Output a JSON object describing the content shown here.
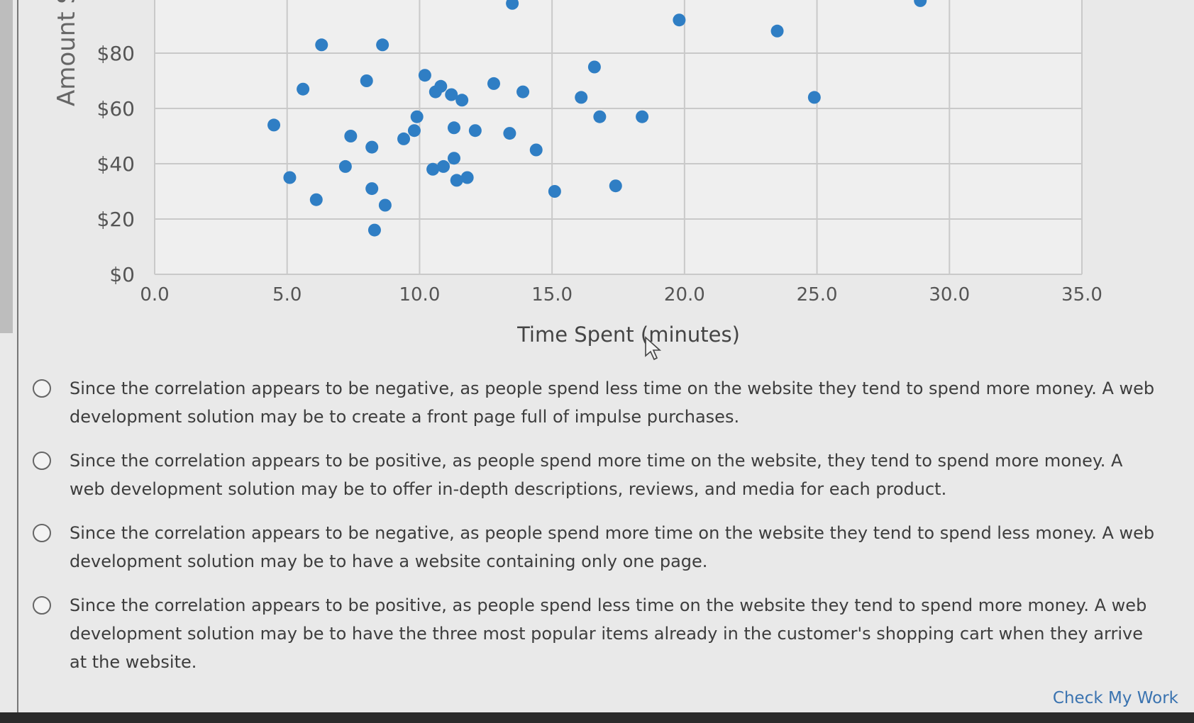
{
  "chart_data": {
    "type": "scatter",
    "ylabel": "Amount Sp",
    "xlabel": "Time Spent (minutes)",
    "x_ticks": [
      "0.0",
      "5.0",
      "10.0",
      "15.0",
      "20.0",
      "25.0",
      "30.0",
      "35.0"
    ],
    "y_ticks": [
      "$0",
      "$20",
      "$40",
      "$60",
      "$80"
    ],
    "xlim": [
      0,
      35
    ],
    "ylim": [
      0,
      94
    ],
    "grid": true,
    "color": "#2f7ec4",
    "points": [
      [
        4.5,
        54
      ],
      [
        5.1,
        35
      ],
      [
        5.6,
        67
      ],
      [
        6.1,
        27
      ],
      [
        6.3,
        83
      ],
      [
        7.2,
        39
      ],
      [
        7.4,
        50
      ],
      [
        8.0,
        70
      ],
      [
        8.2,
        46
      ],
      [
        8.2,
        31
      ],
      [
        8.3,
        16
      ],
      [
        8.6,
        83
      ],
      [
        8.7,
        25
      ],
      [
        9.4,
        49
      ],
      [
        9.8,
        52
      ],
      [
        9.9,
        57
      ],
      [
        10.2,
        72
      ],
      [
        10.5,
        38
      ],
      [
        10.6,
        66
      ],
      [
        10.8,
        68
      ],
      [
        10.9,
        39
      ],
      [
        11.2,
        65
      ],
      [
        11.3,
        53
      ],
      [
        11.3,
        42
      ],
      [
        11.4,
        34
      ],
      [
        11.6,
        63
      ],
      [
        11.8,
        35
      ],
      [
        12.1,
        52
      ],
      [
        12.8,
        69
      ],
      [
        13.4,
        51
      ],
      [
        13.9,
        66
      ],
      [
        14.4,
        45
      ],
      [
        15.1,
        30
      ],
      [
        16.1,
        64
      ],
      [
        16.6,
        75
      ],
      [
        16.8,
        57
      ],
      [
        17.4,
        32
      ],
      [
        18.4,
        57
      ],
      [
        19.8,
        92
      ],
      [
        23.5,
        88
      ],
      [
        24.9,
        64
      ],
      [
        13.5,
        98
      ],
      [
        28.9,
        99
      ]
    ]
  },
  "options": [
    "Since the correlation appears to be negative, as people spend less time on the website they tend to spend more money. A web development solution may be to create a front page full of impulse purchases.",
    "Since the correlation appears to be positive, as people spend more time on the website, they tend to spend more money. A web development solution may be to offer in-depth descriptions, reviews, and media for each product.",
    "Since the correlation appears to be negative, as people spend more time on the website they tend to spend less money. A web development solution may be to have a website containing only one page.",
    "Since the correlation appears to be positive, as people spend less time on the website they tend to spend more money. A web development solution may be to have the three most popular items already in the customer's shopping cart when they arrive at the website."
  ],
  "check_work_label": "Check My Work"
}
